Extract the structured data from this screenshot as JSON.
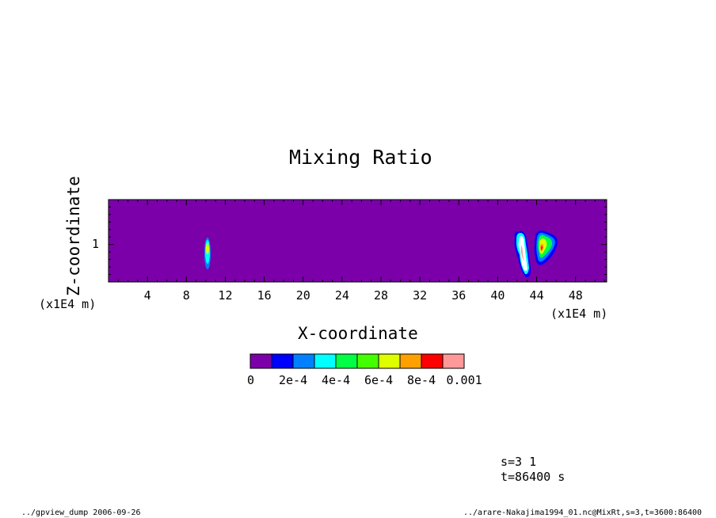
{
  "chart_data": {
    "type": "heatmap",
    "title": "Mixing Ratio",
    "xlabel": "X-coordinate",
    "ylabel": "Z-coordinate",
    "x_unit": "(x1E4 m)",
    "y_unit": "(x1E4 m)",
    "x_ticks": [
      "4",
      "8",
      "12",
      "16",
      "20",
      "24",
      "28",
      "32",
      "36",
      "40",
      "44",
      "48"
    ],
    "y_ticks": [
      "1"
    ],
    "xlim": [
      0,
      51.2
    ],
    "ylim": [
      0.5,
      1.6
    ],
    "grid": false,
    "background_level": "0",
    "colorbar": {
      "labels": [
        "0",
        "2e-4",
        "4e-4",
        "6e-4",
        "8e-4",
        "0.001"
      ],
      "colors": [
        "#7b00aa",
        "#0000ff",
        "#0080ff",
        "#00ffff",
        "#00ff44",
        "#44ff00",
        "#ddff00",
        "#ffa000",
        "#ff0000",
        "#ff9999"
      ]
    },
    "features": [
      {
        "x_center": 10.2,
        "z_center": 0.95,
        "max_level": "4e-4"
      },
      {
        "x_center": 42.6,
        "z_center": 0.88,
        "max_level": "0.001"
      },
      {
        "x_center": 44.8,
        "z_center": 0.95,
        "max_level": "0.001"
      }
    ]
  },
  "info": {
    "s": "s=3 1",
    "t": "t=86400 s",
    "footer_left": "../gpview_dump  2006-09-26",
    "footer_right": "../arare-Nakajima1994_01.nc@MixRt,s=3,t=3600:86400"
  }
}
